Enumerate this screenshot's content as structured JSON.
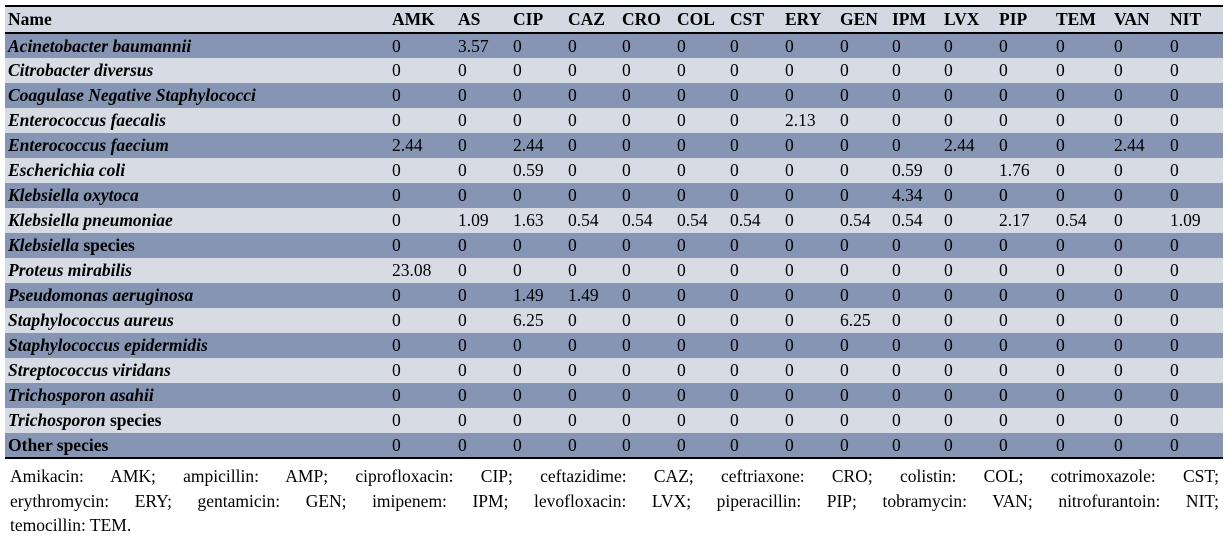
{
  "colors": {
    "row-shaded": "#8595b3",
    "row-light": "#d6dbe4",
    "header-bg": "#d3d9e3",
    "border": "#000000",
    "text": "#000000"
  },
  "table": {
    "columns": [
      "Name",
      "AMK",
      "AS",
      "CIP",
      "CAZ",
      "CRO",
      "COL",
      "CST",
      "ERY",
      "GEN",
      "IPM",
      "LVX",
      "PIP",
      "TEM",
      "VAN",
      "NIT"
    ],
    "rows": [
      {
        "name_italic": "Acinetobacter baumannii",
        "name_plain": "",
        "shaded": true,
        "values": [
          "0",
          "3.57",
          "0",
          "0",
          "0",
          "0",
          "0",
          "0",
          "0",
          "0",
          "0",
          "0",
          "0",
          "0",
          "0"
        ]
      },
      {
        "name_italic": "Citrobacter diversus",
        "name_plain": "",
        "shaded": false,
        "values": [
          "0",
          "0",
          "0",
          "0",
          "0",
          "0",
          "0",
          "0",
          "0",
          "0",
          "0",
          "0",
          "0",
          "0",
          "0"
        ]
      },
      {
        "name_italic": "Coagulase Negative Staphylococci",
        "name_plain": "",
        "shaded": true,
        "values": [
          "0",
          "0",
          "0",
          "0",
          "0",
          "0",
          "0",
          "0",
          "0",
          "0",
          "0",
          "0",
          "0",
          "0",
          "0"
        ]
      },
      {
        "name_italic": "Enterococcus faecalis",
        "name_plain": "",
        "shaded": false,
        "values": [
          "0",
          "0",
          "0",
          "0",
          "0",
          "0",
          "0",
          "2.13",
          "0",
          "0",
          "0",
          "0",
          "0",
          "0",
          "0"
        ]
      },
      {
        "name_italic": "Enterococcus faecium",
        "name_plain": "",
        "shaded": true,
        "values": [
          "2.44",
          "0",
          "2.44",
          "0",
          "0",
          "0",
          "0",
          "0",
          "0",
          "0",
          "2.44",
          "0",
          "0",
          "2.44",
          "0"
        ]
      },
      {
        "name_italic": "Escherichia coli",
        "name_plain": "",
        "shaded": false,
        "values": [
          "0",
          "0",
          "0.59",
          "0",
          "0",
          "0",
          "0",
          "0",
          "0",
          "0.59",
          "0",
          "1.76",
          "0",
          "0",
          "0"
        ]
      },
      {
        "name_italic": "Klebsiella oxytoca",
        "name_plain": "",
        "shaded": true,
        "values": [
          "0",
          "0",
          "0",
          "0",
          "0",
          "0",
          "0",
          "0",
          "0",
          "4.34",
          "0",
          "0",
          "0",
          "0",
          "0"
        ]
      },
      {
        "name_italic": "Klebsiella pneumoniae",
        "name_plain": "",
        "shaded": false,
        "values": [
          "0",
          "1.09",
          "1.63",
          "0.54",
          "0.54",
          "0.54",
          "0.54",
          "0",
          "0.54",
          "0.54",
          "0",
          "2.17",
          "0.54",
          "0",
          "1.09"
        ]
      },
      {
        "name_italic": "Klebsiella",
        "name_plain": " species",
        "shaded": true,
        "values": [
          "0",
          "0",
          "0",
          "0",
          "0",
          "0",
          "0",
          "0",
          "0",
          "0",
          "0",
          "0",
          "0",
          "0",
          "0"
        ]
      },
      {
        "name_italic": "Proteus mirabilis",
        "name_plain": "",
        "shaded": false,
        "values": [
          "23.08",
          "0",
          "0",
          "0",
          "0",
          "0",
          "0",
          "0",
          "0",
          "0",
          "0",
          "0",
          "0",
          "0",
          "0"
        ]
      },
      {
        "name_italic": "Pseudomonas aeruginosa",
        "name_plain": "",
        "shaded": true,
        "values": [
          "0",
          "0",
          "1.49",
          "1.49",
          "0",
          "0",
          "0",
          "0",
          "0",
          "0",
          "0",
          "0",
          "0",
          "0",
          "0"
        ]
      },
      {
        "name_italic": "Staphylococcus aureus",
        "name_plain": "",
        "shaded": false,
        "values": [
          "0",
          "0",
          "6.25",
          "0",
          "0",
          "0",
          "0",
          "0",
          "6.25",
          "0",
          "0",
          "0",
          "0",
          "0",
          "0"
        ]
      },
      {
        "name_italic": "Staphylococcus epidermidis",
        "name_plain": "",
        "shaded": true,
        "values": [
          "0",
          "0",
          "0",
          "0",
          "0",
          "0",
          "0",
          "0",
          "0",
          "0",
          "0",
          "0",
          "0",
          "0",
          "0"
        ]
      },
      {
        "name_italic": "Streptococcus viridans",
        "name_plain": "",
        "shaded": false,
        "values": [
          "0",
          "0",
          "0",
          "0",
          "0",
          "0",
          "0",
          "0",
          "0",
          "0",
          "0",
          "0",
          "0",
          "0",
          "0"
        ]
      },
      {
        "name_italic": "Trichosporon asahii",
        "name_plain": "",
        "shaded": true,
        "values": [
          "0",
          "0",
          "0",
          "0",
          "0",
          "0",
          "0",
          "0",
          "0",
          "0",
          "0",
          "0",
          "0",
          "0",
          "0"
        ]
      },
      {
        "name_italic": "Trichosporon",
        "name_plain": " species",
        "shaded": false,
        "values": [
          "0",
          "0",
          "0",
          "0",
          "0",
          "0",
          "0",
          "0",
          "0",
          "0",
          "0",
          "0",
          "0",
          "0",
          "0"
        ]
      },
      {
        "name_italic": "",
        "name_plain": "Other species",
        "shaded": true,
        "values": [
          "0",
          "0",
          "0",
          "0",
          "0",
          "0",
          "0",
          "0",
          "0",
          "0",
          "0",
          "0",
          "0",
          "0",
          "0"
        ]
      }
    ]
  },
  "footnote": {
    "lines": [
      "Amikacin: AMK; ampicillin: AMP; ciprofloxacin: CIP; ceftazidime: CAZ; ceftriaxone: CRO; colistin: COL; cotrimoxazole: CST;",
      "erythromycin: ERY; gentamicin: GEN; imipenem: IPM; levofloxacin: LVX; piperacillin: PIP; tobramycin: VAN; nitrofurantoin: NIT;",
      "temocillin: TEM."
    ]
  }
}
